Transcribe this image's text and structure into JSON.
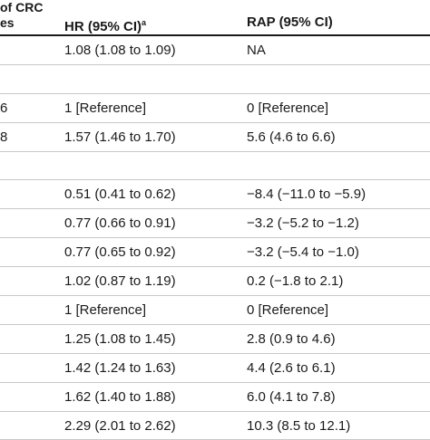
{
  "header": {
    "col1_line1": "of CRC",
    "col1_line2": "es",
    "hr": "HR (95% CI)",
    "hr_sup": "a",
    "rap": "RAP (95% CI)"
  },
  "rows": [
    {
      "label": "",
      "hr": "1.08 (1.08 to 1.09)",
      "rap": "NA"
    },
    {
      "label": "",
      "hr": "",
      "rap": ""
    },
    {
      "label": "6",
      "hr": "1 [Reference]",
      "rap": "0 [Reference]"
    },
    {
      "label": "8",
      "hr": "1.57 (1.46 to 1.70)",
      "rap": "5.6 (4.6 to 6.6)"
    },
    {
      "label": "",
      "hr": "",
      "rap": ""
    },
    {
      "label": "",
      "hr": "0.51 (0.41 to 0.62)",
      "rap": "−8.4 (−11.0 to −5.9)"
    },
    {
      "label": "",
      "hr": "0.77 (0.66 to 0.91)",
      "rap": "−3.2 (−5.2 to −1.2)"
    },
    {
      "label": "",
      "hr": "0.77 (0.65 to 0.92)",
      "rap": "−3.2 (−5.4 to −1.0)"
    },
    {
      "label": "",
      "hr": "1.02 (0.87 to 1.19)",
      "rap": "0.2 (−1.8 to 2.1)"
    },
    {
      "label": "",
      "hr": "1 [Reference]",
      "rap": "0 [Reference]"
    },
    {
      "label": "",
      "hr": "1.25 (1.08 to 1.45)",
      "rap": "2.8 (0.9 to 4.6)"
    },
    {
      "label": "",
      "hr": "1.42 (1.24 to 1.63)",
      "rap": "4.4 (2.6 to 6.1)"
    },
    {
      "label": "",
      "hr": "1.62 (1.40 to 1.88)",
      "rap": "6.0 (4.1 to 7.8)"
    },
    {
      "label": "",
      "hr": "2.29 (2.01 to 2.62)",
      "rap": "10.3 (8.5 to 12.1)"
    }
  ]
}
